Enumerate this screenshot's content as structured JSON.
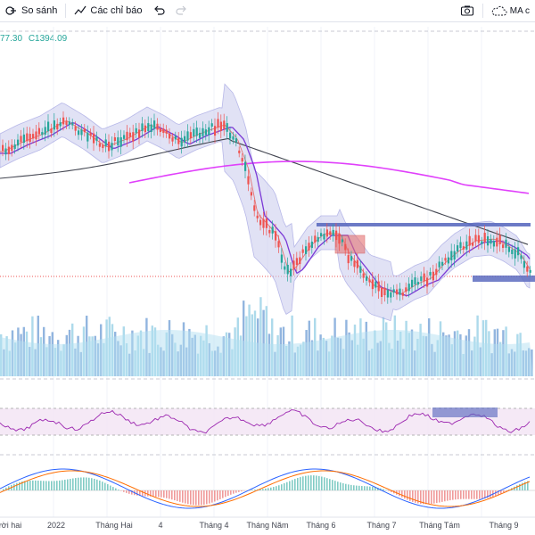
{
  "toolbar": {
    "compare_label": "So sánh",
    "indicators_label": "Các chỉ báo",
    "ma_label": "MA c"
  },
  "legend": {
    "partial_value": "77.30",
    "close_prefix": "C",
    "close_value": "1394.09"
  },
  "x_axis": {
    "labels": [
      "ười hai",
      "2022",
      "Tháng Hai",
      "4",
      "Tháng 4",
      "Tháng Năm",
      "Tháng 6",
      "Tháng 7",
      "Tháng Tám",
      "Tháng 9"
    ]
  },
  "colors": {
    "up": "#26a69a",
    "down": "#ef5350",
    "bollinger_fill": "#c9cbee",
    "bollinger_line": "#7e7fd6",
    "ma_long": "#e040fb",
    "ma_mid": "#434651",
    "rsi_band": "#f3e5f5",
    "zone_blue": "#5b6fc4",
    "zone_red": "#e57373"
  },
  "icons": [
    "compare-icon",
    "indicators-icon",
    "undo-icon",
    "redo-icon",
    "camera-icon",
    "cloud-icon"
  ]
}
